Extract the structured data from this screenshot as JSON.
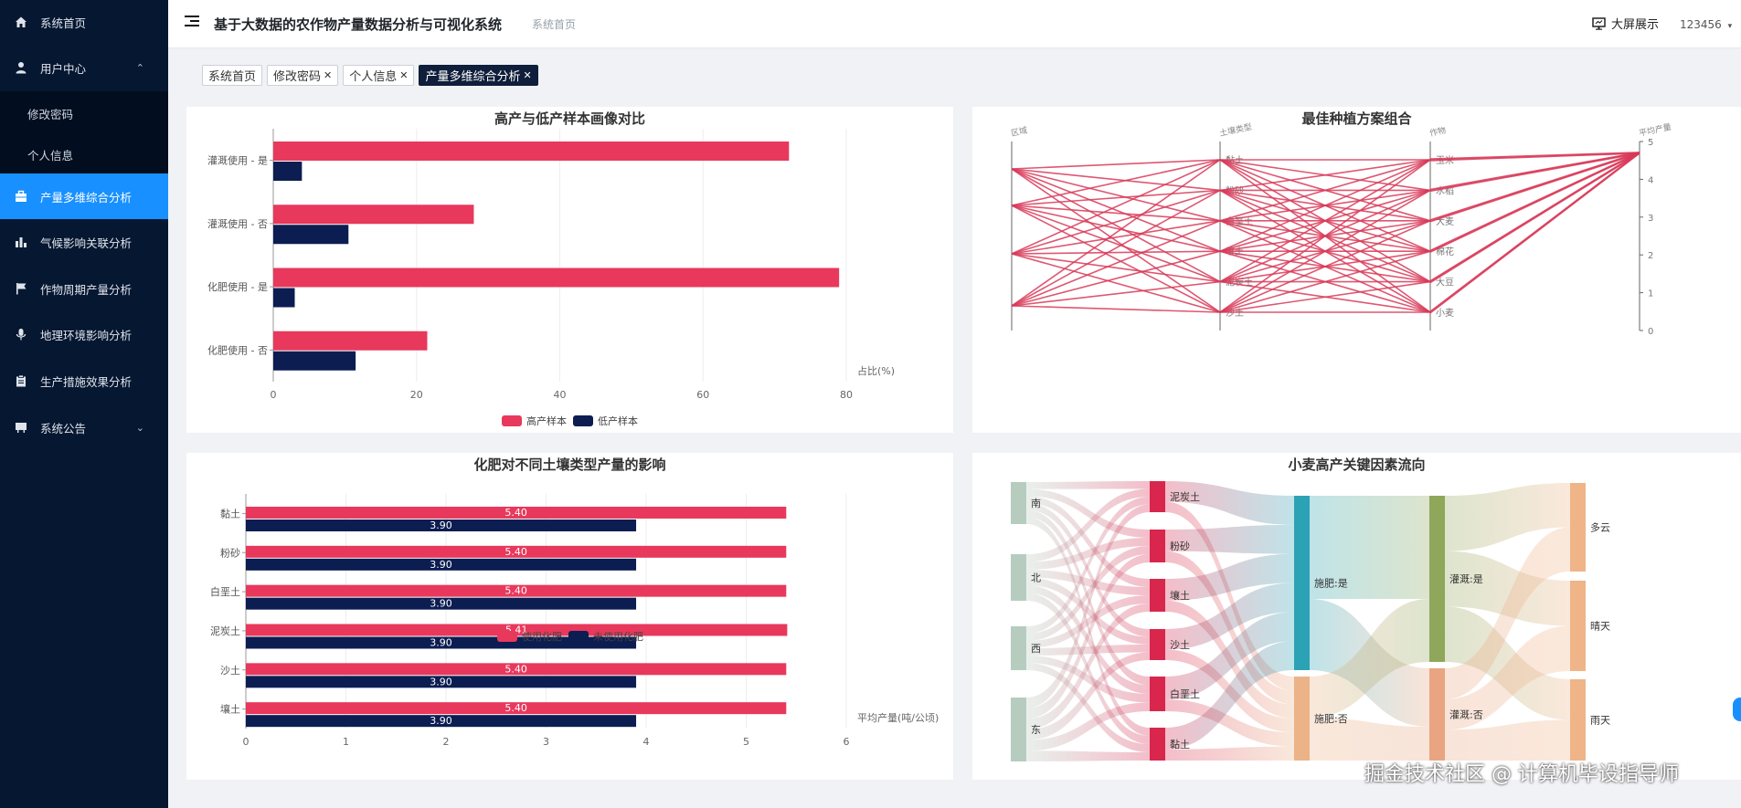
{
  "sidebar": {
    "items": [
      {
        "label": "系统首页",
        "icon": "home-icon"
      },
      {
        "label": "用户中心",
        "icon": "user-icon",
        "expanded": true,
        "children": [
          {
            "label": "修改密码"
          },
          {
            "label": "个人信息"
          }
        ]
      },
      {
        "label": "产量多维综合分析",
        "icon": "briefcase-icon",
        "active": true
      },
      {
        "label": "气候影响关联分析",
        "icon": "bar-chart-icon"
      },
      {
        "label": "作物周期产量分析",
        "icon": "flag-icon"
      },
      {
        "label": "地理环境影响分析",
        "icon": "microphone-icon"
      },
      {
        "label": "生产措施效果分析",
        "icon": "clipboard-icon"
      },
      {
        "label": "系统公告",
        "icon": "board-icon",
        "expanded": false
      }
    ]
  },
  "header": {
    "title": "基于大数据的农作物产量数据分析与可视化系统",
    "breadcrumb": "系统首页",
    "bigscreen_label": "大屏展示",
    "username": "123456"
  },
  "tabs": [
    {
      "label": "系统首页",
      "closable": false,
      "active": false
    },
    {
      "label": "修改密码",
      "closable": true,
      "active": false
    },
    {
      "label": "个人信息",
      "closable": true,
      "active": false
    },
    {
      "label": "产量多维综合分析",
      "closable": true,
      "active": true
    }
  ],
  "colors": {
    "accent": "#1890ff",
    "sidebar": "#061731",
    "red": "#e8385c",
    "navy": "#0c1d52"
  },
  "watermark": "掘金技术社区 @ 计算机毕设指导师",
  "chart_data": [
    {
      "type": "bar",
      "orientation": "horizontal",
      "title": "高产与低产样本画像对比",
      "categories": [
        "灌溉使用 - 是",
        "灌溉使用 - 否",
        "化肥使用 - 是",
        "化肥使用 - 否"
      ],
      "series": [
        {
          "name": "高产样本",
          "values": [
            72,
            28,
            79,
            21.5
          ],
          "color": "#e8385c"
        },
        {
          "name": "低产样本",
          "values": [
            4,
            10.5,
            3,
            11.5
          ],
          "color": "#0c1d52"
        }
      ],
      "xlabel": "占比(%)",
      "xlim": [
        0,
        80
      ],
      "xticks": [
        0,
        20,
        40,
        60,
        80
      ],
      "legend": "bottom"
    },
    {
      "type": "parallel",
      "title": "最佳种植方案组合",
      "axes": [
        "区域",
        "土壤类型",
        "作物",
        "平均产量"
      ],
      "crop_labels": [
        "玉米",
        "水稻",
        "大麦",
        "棉花",
        "大豆",
        "小麦"
      ],
      "soil_labels": [
        "黏土",
        "粉砂",
        "白垩土",
        "壤土",
        "泥炭土",
        "沙土"
      ],
      "yield_ticks": [
        0,
        1,
        2,
        3,
        4,
        5
      ],
      "color": "#d83a58"
    },
    {
      "type": "bar",
      "orientation": "horizontal",
      "title": "化肥对不同土壤类型产量的影响",
      "categories": [
        "黏土",
        "粉砂",
        "白垩土",
        "泥炭土",
        "沙土",
        "壤土"
      ],
      "series": [
        {
          "name": "使用化肥",
          "values": [
            5.4,
            5.4,
            5.4,
            5.41,
            5.4,
            5.4
          ],
          "labels": [
            "5.40",
            "5.40",
            "5.40",
            "5.41",
            "5.40",
            "5.40"
          ],
          "color": "#e8385c"
        },
        {
          "name": "未使用化肥",
          "values": [
            3.9,
            3.9,
            3.9,
            3.9,
            3.9,
            3.9
          ],
          "labels": [
            "3.90",
            "3.90",
            "3.90",
            "3.90",
            "3.90",
            "3.90"
          ],
          "color": "#0c1d52"
        }
      ],
      "xlabel": "平均产量(吨/公顷)",
      "xlim": [
        0,
        6
      ],
      "xticks": [
        0,
        1,
        2,
        3,
        4,
        5,
        6
      ],
      "legend": "bottom"
    },
    {
      "type": "sankey",
      "title": "小麦高产关键因素流向",
      "columns": [
        {
          "nodes": [
            "南",
            "北",
            "西",
            "东"
          ],
          "color": "#b6ccbf"
        },
        {
          "nodes": [
            "泥炭土",
            "粉砂",
            "壤土",
            "沙土",
            "白垩土",
            "黏土"
          ],
          "color": "#d8264d"
        },
        {
          "nodes": [
            "施肥:是",
            "施肥:否"
          ],
          "colors": [
            "#2ba3b4",
            "#ebb387"
          ]
        },
        {
          "nodes": [
            "灌溉:是",
            "灌溉:否"
          ],
          "colors": [
            "#8ea75a",
            "#e9a581"
          ]
        },
        {
          "nodes": [
            "多云",
            "晴天",
            "雨天"
          ],
          "color": "#efb488"
        }
      ]
    }
  ]
}
